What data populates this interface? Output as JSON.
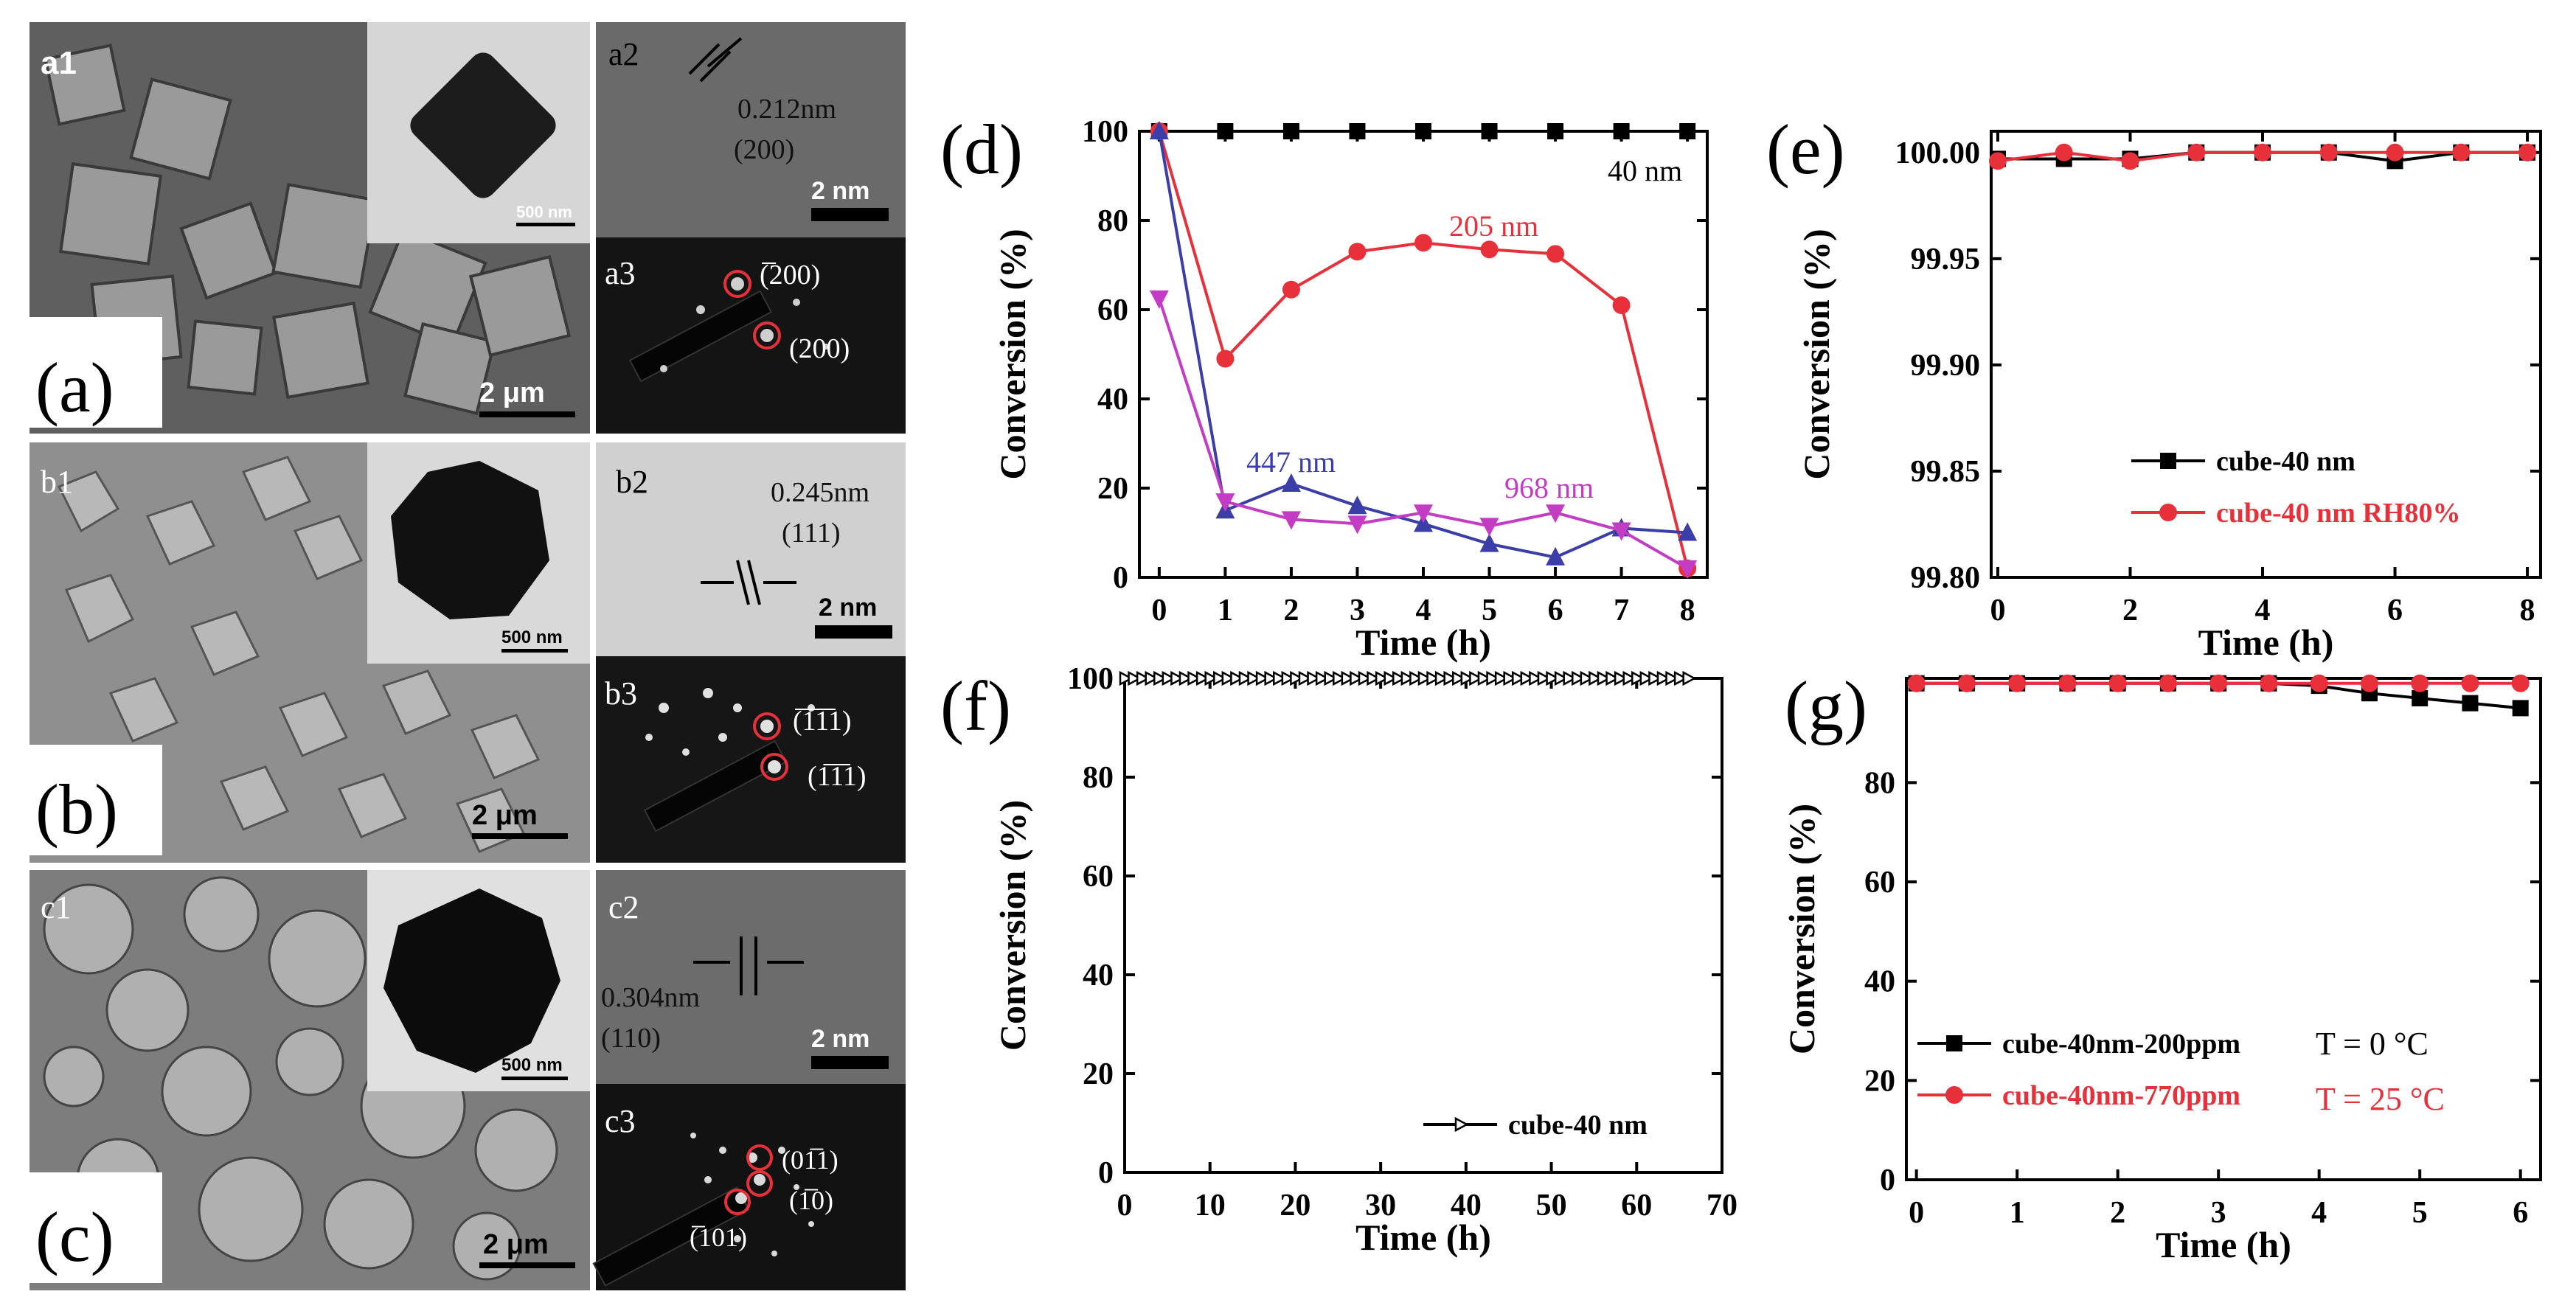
{
  "colors": {
    "black": "#000000",
    "red": "#e8303a",
    "blue": "#3b3ea8",
    "magenta": "#c43cc4"
  },
  "left_panels": {
    "a": {
      "big_label": "(a)",
      "sub1": "a1",
      "sub2": "a2",
      "sub3": "a3",
      "spacing": "0.212nm",
      "plane": "(200)",
      "scale_sem": "2 μm",
      "scale_tem": "500 nm",
      "scale_hr": "2 nm",
      "spot1": "(̅200)",
      "spot2": "(200)"
    },
    "b": {
      "big_label": "(b)",
      "sub1": "b1",
      "sub2": "b2",
      "sub3": "b3",
      "spacing": "0.245nm",
      "plane": "(111)",
      "scale_sem": "2 μm",
      "scale_tem": "500 nm",
      "scale_hr": "2 nm",
      "spot1": "(̅1̅1̅1)",
      "spot2": "(1̅1̅1)"
    },
    "c": {
      "big_label": "(c)",
      "sub1": "c1",
      "sub2": "c2",
      "sub3": "c3",
      "spacing": "0.304nm",
      "plane": "(110)",
      "scale_sem": "2 μm",
      "scale_tem": "500 nm",
      "scale_hr": "2 nm",
      "spot1": "(01̅1)",
      "spot2": "(1̅0)",
      "spot3": "(̅101)"
    }
  },
  "chart_data": [
    {
      "panel": "(d)",
      "type": "line",
      "xlabel": "Time (h)",
      "ylabel": "Conversion (%)",
      "xlim": [
        -0.3,
        8.3
      ],
      "ylim": [
        0,
        100
      ],
      "xticks": [
        0,
        1,
        2,
        3,
        4,
        5,
        6,
        7,
        8
      ],
      "yticks": [
        0,
        20,
        40,
        60,
        80,
        100
      ],
      "series": [
        {
          "name": "40 nm",
          "color": "#000000",
          "marker": "square",
          "x": [
            0,
            1,
            2,
            3,
            4,
            5,
            6,
            7,
            8
          ],
          "y": [
            100,
            100,
            100,
            100,
            100,
            100,
            100,
            100,
            100
          ]
        },
        {
          "name": "205 nm",
          "color": "#e8303a",
          "marker": "circle",
          "x": [
            0,
            1,
            2,
            3,
            4,
            5,
            6,
            7,
            8
          ],
          "y": [
            100,
            49,
            64.5,
            73,
            75,
            73.5,
            72.5,
            61,
            2
          ]
        },
        {
          "name": "447 nm",
          "color": "#3b3ea8",
          "marker": "triangle-up",
          "x": [
            0,
            1,
            2,
            3,
            4,
            5,
            6,
            7,
            8
          ],
          "y": [
            100,
            15,
            21,
            16,
            12,
            7.5,
            4.5,
            11,
            10
          ]
        },
        {
          "name": "968 nm",
          "color": "#c43cc4",
          "marker": "triangle-down",
          "x": [
            0,
            1,
            2,
            3,
            4,
            5,
            6,
            7,
            8
          ],
          "y": [
            62.5,
            17,
            13,
            12,
            14.5,
            11.5,
            14.5,
            10.5,
            2
          ]
        }
      ],
      "annotations": [
        "40 nm",
        "205 nm",
        "447 nm",
        "968 nm"
      ]
    },
    {
      "panel": "(e)",
      "type": "line",
      "xlabel": "Time (h)",
      "ylabel": "Conversion (%)",
      "xlim": [
        -0.1,
        8.2
      ],
      "ylim": [
        99.8,
        100.01
      ],
      "xticks": [
        0,
        2,
        4,
        6,
        8
      ],
      "yticks": [
        "99.80",
        "99.85",
        "99.90",
        "99.95",
        "100.00"
      ],
      "series": [
        {
          "name": "cube-40 nm",
          "color": "#000000",
          "marker": "square",
          "x": [
            0,
            1,
            2,
            3,
            4,
            5,
            6,
            7,
            8
          ],
          "y": [
            99.997,
            99.997,
            99.997,
            100,
            100,
            100,
            99.996,
            100,
            100
          ]
        },
        {
          "name": "cube-40 nm RH80%",
          "color": "#e8303a",
          "marker": "circle",
          "x": [
            0,
            1,
            2,
            3,
            4,
            5,
            6,
            7,
            8
          ],
          "y": [
            99.996,
            100,
            99.996,
            100,
            100,
            100,
            100,
            100,
            100
          ]
        }
      ],
      "legend": "bottom-center"
    },
    {
      "panel": "(f)",
      "type": "line",
      "xlabel": "Time (h)",
      "ylabel": "Conversion (%)",
      "xlim": [
        0,
        70
      ],
      "ylim": [
        0,
        100
      ],
      "xticks": [
        0,
        10,
        20,
        30,
        40,
        50,
        60,
        70
      ],
      "yticks": [
        0,
        20,
        40,
        60,
        80,
        100
      ],
      "series": [
        {
          "name": "cube-40 nm",
          "color": "#000000",
          "marker": "open-triangle-right",
          "x_start": 0,
          "x_end": 66,
          "x_step": 1,
          "y_const": 100
        }
      ],
      "legend": "bottom-right"
    },
    {
      "panel": "(g)",
      "type": "line",
      "xlabel": "Time (h)",
      "ylabel": "Conversion (%)",
      "xlim": [
        -0.1,
        6.2
      ],
      "ylim": [
        0,
        101
      ],
      "xticks": [
        0,
        1,
        2,
        3,
        4,
        5,
        6
      ],
      "yticks": [
        0,
        20,
        40,
        60,
        80
      ],
      "series": [
        {
          "name": "cube-40nm-200ppm",
          "condition": "T = 0 °C",
          "color": "#000000",
          "marker": "square",
          "x": [
            0,
            0.5,
            1,
            1.5,
            2,
            2.5,
            3,
            3.5,
            4,
            4.5,
            5,
            5.5,
            6
          ],
          "y": [
            100,
            100,
            100,
            100,
            100,
            100,
            100,
            100,
            99.5,
            98,
            97,
            96,
            95
          ]
        },
        {
          "name": "cube-40nm-770ppm",
          "condition": "T = 25 °C",
          "color": "#e8303a",
          "marker": "circle",
          "x": [
            0,
            0.5,
            1,
            1.5,
            2,
            2.5,
            3,
            3.5,
            4,
            4.5,
            5,
            5.5,
            6
          ],
          "y": [
            100,
            100,
            100,
            100,
            100,
            100,
            100,
            100,
            100,
            100,
            100,
            100,
            100
          ]
        }
      ],
      "legend": "bottom-left"
    }
  ]
}
